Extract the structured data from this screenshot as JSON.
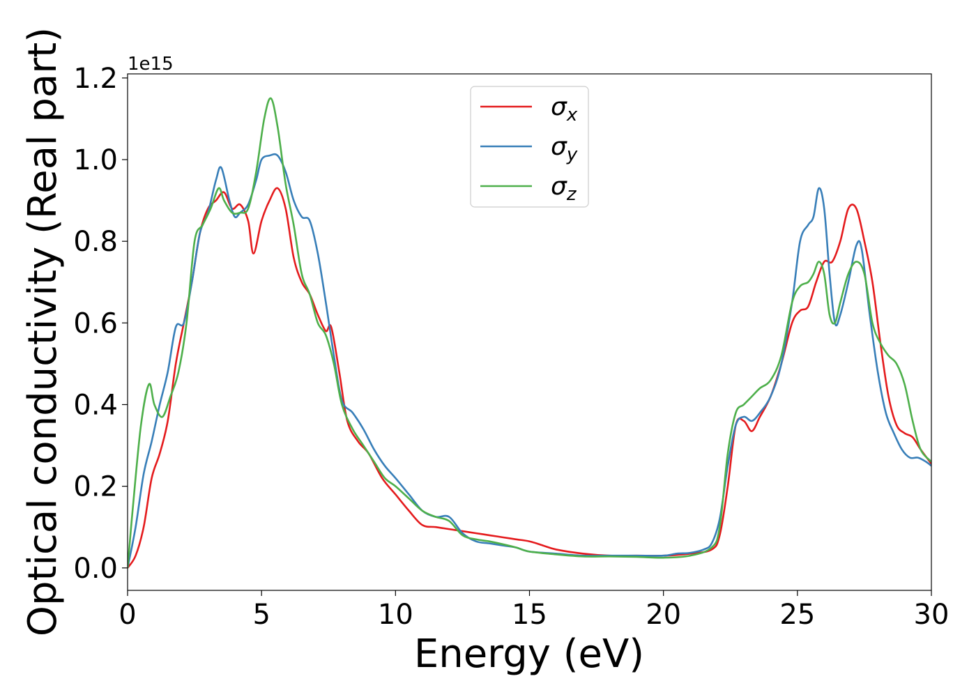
{
  "chart_data": {
    "type": "line",
    "title": "",
    "xlabel": "Energy (eV)",
    "ylabel": "Optical conductivity (Real part)",
    "y_offset_text": "1e15",
    "xlim": [
      0,
      30
    ],
    "ylim": [
      -0.055,
      1.21
    ],
    "x_ticks": [
      0,
      5,
      10,
      15,
      20,
      25,
      30
    ],
    "x_tick_labels": [
      "0",
      "5",
      "10",
      "15",
      "20",
      "25",
      "30"
    ],
    "y_ticks": [
      0.0,
      0.2,
      0.4,
      0.6,
      0.8,
      1.0,
      1.2
    ],
    "y_tick_labels": [
      "0.0",
      "0.2",
      "0.4",
      "0.6",
      "0.8",
      "1.0",
      "1.2"
    ],
    "grid": false,
    "legend_position": "top-center",
    "series": [
      {
        "name": "σx",
        "legend_base": "σ",
        "legend_sub": "x",
        "color": "#e41a1c",
        "x": [
          0,
          0.3,
          0.6,
          0.9,
          1.2,
          1.5,
          1.8,
          2.1,
          2.4,
          2.7,
          3.0,
          3.3,
          3.6,
          3.9,
          4.2,
          4.5,
          4.7,
          5.0,
          5.3,
          5.6,
          5.9,
          6.2,
          6.5,
          6.8,
          7.1,
          7.4,
          7.6,
          7.9,
          8.2,
          8.6,
          9.0,
          9.5,
          10.0,
          10.5,
          11.0,
          11.5,
          12.0,
          12.5,
          13.0,
          13.5,
          14.0,
          14.5,
          15.0,
          15.5,
          16.0,
          17.0,
          18.0,
          19.0,
          20.0,
          21.0,
          21.8,
          22.1,
          22.4,
          22.7,
          23.0,
          23.3,
          23.6,
          24.0,
          24.4,
          24.8,
          25.1,
          25.4,
          25.7,
          26.0,
          26.3,
          26.6,
          26.9,
          27.2,
          27.5,
          27.8,
          28.1,
          28.4,
          28.7,
          29.0,
          29.3,
          29.6,
          30.0
        ],
        "values": [
          0,
          0.03,
          0.1,
          0.22,
          0.28,
          0.36,
          0.5,
          0.6,
          0.7,
          0.82,
          0.88,
          0.9,
          0.92,
          0.88,
          0.89,
          0.85,
          0.77,
          0.85,
          0.9,
          0.93,
          0.88,
          0.76,
          0.7,
          0.67,
          0.62,
          0.58,
          0.59,
          0.48,
          0.36,
          0.31,
          0.28,
          0.22,
          0.18,
          0.14,
          0.105,
          0.1,
          0.095,
          0.09,
          0.085,
          0.08,
          0.075,
          0.07,
          0.065,
          0.055,
          0.045,
          0.035,
          0.03,
          0.03,
          0.03,
          0.035,
          0.045,
          0.08,
          0.2,
          0.35,
          0.36,
          0.335,
          0.37,
          0.42,
          0.5,
          0.6,
          0.63,
          0.64,
          0.7,
          0.75,
          0.75,
          0.8,
          0.88,
          0.88,
          0.8,
          0.7,
          0.55,
          0.42,
          0.35,
          0.33,
          0.32,
          0.29,
          0.255
        ]
      },
      {
        "name": "σy",
        "legend_base": "σ",
        "legend_sub": "y",
        "color": "#377eb8",
        "x": [
          0,
          0.3,
          0.6,
          0.9,
          1.2,
          1.5,
          1.8,
          2.1,
          2.4,
          2.7,
          3.0,
          3.3,
          3.5,
          3.8,
          4.0,
          4.2,
          4.5,
          4.8,
          5.0,
          5.3,
          5.6,
          5.9,
          6.2,
          6.5,
          6.8,
          7.1,
          7.4,
          7.7,
          8.0,
          8.4,
          8.8,
          9.2,
          9.6,
          10.0,
          10.5,
          11.0,
          11.5,
          12.0,
          12.5,
          13.0,
          13.5,
          14.0,
          14.5,
          15.0,
          16.0,
          17.0,
          18.0,
          19.0,
          20.0,
          20.5,
          21.0,
          21.5,
          21.8,
          22.1,
          22.4,
          22.7,
          23.0,
          23.3,
          23.6,
          24.0,
          24.4,
          24.8,
          25.1,
          25.4,
          25.6,
          25.8,
          26.0,
          26.2,
          26.4,
          26.6,
          26.9,
          27.2,
          27.4,
          27.7,
          28.0,
          28.3,
          28.6,
          28.9,
          29.2,
          29.5,
          29.8,
          30.0
        ],
        "values": [
          0,
          0.1,
          0.23,
          0.31,
          0.4,
          0.48,
          0.59,
          0.6,
          0.7,
          0.82,
          0.87,
          0.95,
          0.98,
          0.9,
          0.86,
          0.87,
          0.89,
          0.95,
          1.0,
          1.01,
          1.01,
          0.97,
          0.9,
          0.86,
          0.85,
          0.77,
          0.65,
          0.52,
          0.41,
          0.38,
          0.34,
          0.29,
          0.25,
          0.22,
          0.18,
          0.14,
          0.125,
          0.125,
          0.085,
          0.065,
          0.06,
          0.055,
          0.05,
          0.04,
          0.035,
          0.03,
          0.03,
          0.03,
          0.03,
          0.035,
          0.037,
          0.045,
          0.06,
          0.12,
          0.25,
          0.35,
          0.37,
          0.36,
          0.38,
          0.42,
          0.5,
          0.65,
          0.8,
          0.84,
          0.86,
          0.93,
          0.88,
          0.72,
          0.6,
          0.62,
          0.7,
          0.79,
          0.78,
          0.62,
          0.48,
          0.38,
          0.33,
          0.29,
          0.27,
          0.27,
          0.26,
          0.25
        ]
      },
      {
        "name": "σz",
        "legend_base": "σ",
        "legend_sub": "z",
        "color": "#4daf4a",
        "x": [
          0,
          0.2,
          0.5,
          0.8,
          1.0,
          1.3,
          1.6,
          1.9,
          2.2,
          2.5,
          2.8,
          3.1,
          3.4,
          3.6,
          3.9,
          4.2,
          4.5,
          4.8,
          5.1,
          5.35,
          5.6,
          5.9,
          6.2,
          6.5,
          6.8,
          7.1,
          7.4,
          7.7,
          8.0,
          8.4,
          8.8,
          9.2,
          9.6,
          10.0,
          10.5,
          11.0,
          11.5,
          12.0,
          12.5,
          13.0,
          13.5,
          14.0,
          14.5,
          15.0,
          16.0,
          17.0,
          18.0,
          19.0,
          20.0,
          21.0,
          21.8,
          22.1,
          22.4,
          22.7,
          23.0,
          23.3,
          23.6,
          24.0,
          24.4,
          24.8,
          25.1,
          25.4,
          25.6,
          25.8,
          26.0,
          26.2,
          26.4,
          26.6,
          26.9,
          27.2,
          27.5,
          27.8,
          28.1,
          28.4,
          28.7,
          29.0,
          29.3,
          29.6,
          30.0
        ],
        "values": [
          0,
          0.15,
          0.35,
          0.45,
          0.4,
          0.37,
          0.42,
          0.48,
          0.6,
          0.8,
          0.84,
          0.88,
          0.93,
          0.9,
          0.87,
          0.87,
          0.88,
          0.97,
          1.1,
          1.15,
          1.08,
          0.94,
          0.84,
          0.72,
          0.67,
          0.6,
          0.57,
          0.5,
          0.4,
          0.34,
          0.3,
          0.26,
          0.22,
          0.2,
          0.17,
          0.14,
          0.125,
          0.115,
          0.08,
          0.07,
          0.065,
          0.058,
          0.05,
          0.04,
          0.033,
          0.028,
          0.028,
          0.027,
          0.025,
          0.03,
          0.05,
          0.1,
          0.28,
          0.38,
          0.4,
          0.42,
          0.44,
          0.46,
          0.52,
          0.65,
          0.69,
          0.7,
          0.72,
          0.75,
          0.72,
          0.62,
          0.6,
          0.65,
          0.72,
          0.75,
          0.72,
          0.6,
          0.55,
          0.52,
          0.5,
          0.45,
          0.36,
          0.29,
          0.26
        ]
      }
    ]
  }
}
